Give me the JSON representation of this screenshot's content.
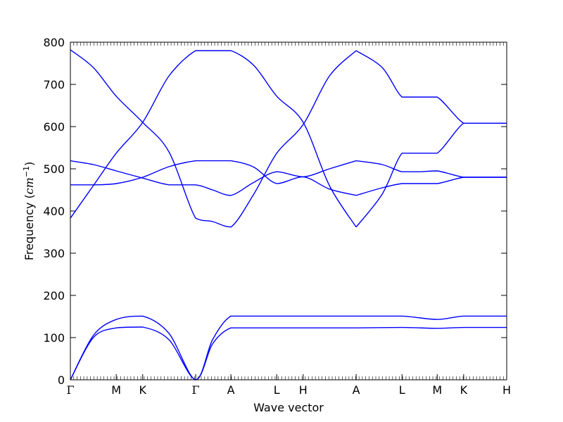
{
  "chart_data": {
    "type": "line",
    "xlabel": "Wave vector",
    "ylabel_text": "Frequency (",
    "ylabel_unit": "cm",
    "ylabel_exp": "−1",
    "ylabel_close": ")",
    "ylim": [
      0,
      800
    ],
    "yticks": [
      0,
      100,
      200,
      300,
      400,
      500,
      600,
      700,
      800
    ],
    "xlim": [
      0,
      9.515
    ],
    "kpoints": [
      {
        "label": "Γ",
        "x": 0
      },
      {
        "label": "M",
        "x": 1.0
      },
      {
        "label": "K",
        "x": 1.577
      },
      {
        "label": "Γ",
        "x": 2.732
      },
      {
        "label": "A",
        "x": 3.5
      },
      {
        "label": "L",
        "x": 4.5
      },
      {
        "label": "H",
        "x": 5.077
      },
      {
        "label": "A",
        "x": 6.232
      },
      {
        "label": "L",
        "x": 7.232
      },
      {
        "label": "M",
        "x": 8.0
      },
      {
        "label": "K",
        "x": 8.577
      },
      {
        "label": "H",
        "x": 9.515
      }
    ],
    "line_color": "#0000ff",
    "series": [
      {
        "x": [
          0,
          0.5,
          1.0,
          1.577,
          2.15,
          2.732,
          3.1,
          3.5,
          4.0,
          4.5,
          5.077,
          5.65,
          6.232
        ],
        "y": [
          782,
          740,
          672,
          610,
          540,
          383,
          375,
          362,
          440,
          537,
          605,
          720,
          780
        ]
      },
      {
        "x": [
          6.232,
          6.8,
          7.232,
          7.6,
          8.0,
          8.577,
          9.0,
          9.515
        ],
        "y": [
          780,
          740,
          670,
          670,
          670,
          608,
          608,
          608
        ]
      },
      {
        "x": [
          0,
          0.5,
          1.0,
          1.577,
          2.15,
          2.732,
          3.1,
          3.5,
          4.0,
          4.5,
          5.077,
          5.65,
          6.232
        ],
        "y": [
          383,
          460,
          537,
          610,
          720,
          780,
          780,
          780,
          745,
          672,
          610,
          460,
          362
        ]
      },
      {
        "x": [
          6.232,
          6.8,
          7.232,
          7.6,
          8.0,
          8.577,
          9.0,
          9.515
        ],
        "y": [
          362,
          440,
          537,
          537,
          537,
          608,
          608,
          608
        ]
      },
      {
        "x": [
          0,
          0.5,
          1.0,
          1.577,
          2.15,
          2.732,
          3.1,
          3.5,
          4.0,
          4.5,
          5.077,
          5.65,
          6.232
        ],
        "y": [
          519,
          510,
          495,
          478,
          462,
          462,
          450,
          437,
          468,
          493,
          481,
          500,
          519
        ]
      },
      {
        "x": [
          6.232,
          6.8,
          7.232,
          7.6,
          8.0,
          8.577,
          9.0,
          9.515
        ],
        "y": [
          519,
          510,
          493,
          493,
          495,
          480,
          480,
          480
        ]
      },
      {
        "x": [
          0,
          0.5,
          1.0,
          1.577,
          2.15,
          2.732,
          3.1,
          3.5,
          4.0,
          4.5,
          5.077,
          5.65,
          6.232
        ],
        "y": [
          462,
          462,
          465,
          480,
          505,
          519,
          519,
          519,
          504,
          465,
          481,
          452,
          437
        ]
      },
      {
        "x": [
          6.232,
          6.8,
          7.232,
          7.6,
          8.0,
          8.577,
          9.0,
          9.515
        ],
        "y": [
          437,
          455,
          465,
          465,
          465,
          480,
          480,
          480
        ]
      },
      {
        "x": [
          0,
          0.5,
          1.0,
          1.577,
          2.15,
          2.732,
          3.1,
          3.5,
          4.0,
          4.5,
          5.077,
          5.65,
          6.232,
          7.232,
          8.0,
          8.577,
          9.515
        ],
        "y": [
          0,
          105,
          143,
          151,
          110,
          0,
          95,
          151,
          151,
          151,
          151,
          151,
          151,
          151,
          143,
          151,
          151
        ]
      },
      {
        "x": [
          0,
          0.5,
          1.0,
          1.577,
          2.15,
          2.732,
          3.1,
          3.5,
          4.0,
          4.5,
          5.077,
          5.65,
          6.232,
          7.232,
          8.0,
          8.577,
          9.515
        ],
        "y": [
          0,
          100,
          123,
          125,
          95,
          0,
          85,
          123,
          123,
          123,
          123,
          123,
          123,
          124,
          122,
          124,
          124
        ]
      }
    ]
  }
}
